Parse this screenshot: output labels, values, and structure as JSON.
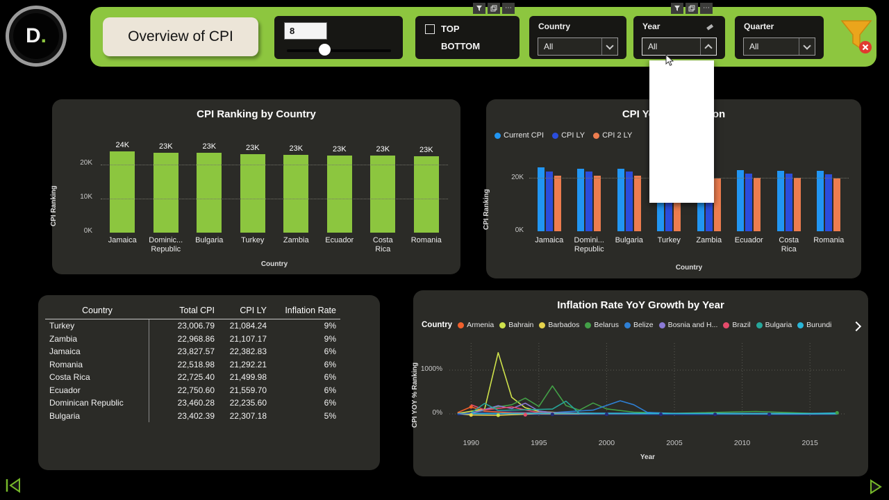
{
  "logo": {
    "text": "D",
    "dot": "."
  },
  "header": {
    "title": "Overview of CPI",
    "slider": {
      "value": "8"
    },
    "topbottom": {
      "top": "TOP",
      "bottom": "BOTTOM"
    },
    "filters": [
      {
        "label": "Country",
        "value": "All"
      },
      {
        "label": "Year",
        "value": "All"
      },
      {
        "label": "Quarter",
        "value": "All"
      }
    ]
  },
  "chart_data": [
    {
      "id": "cpi-ranking-by-country",
      "type": "bar",
      "title": "CPI Ranking by Country",
      "ylabel": "CPI Ranking",
      "xlabel": "Country",
      "bar_color": "#8cc63f",
      "categories": [
        [
          "Jamaica"
        ],
        [
          "Dominic...",
          "Republic"
        ],
        [
          "Bulgaria"
        ],
        [
          "Turkey"
        ],
        [
          "Zambia"
        ],
        [
          "Ecuador"
        ],
        [
          "Costa",
          "Rica"
        ],
        [
          "Romania"
        ]
      ],
      "values": [
        23827.57,
        23460.28,
        23402.39,
        23006.79,
        22968.86,
        22750.6,
        22725.4,
        22518.98
      ],
      "labels": [
        "24K",
        "23K",
        "23K",
        "23K",
        "23K",
        "23K",
        "23K",
        "23K"
      ],
      "ytick_labels": [
        "20K",
        "10K",
        "0K"
      ],
      "ylim": [
        0,
        26000
      ],
      "grid": "dotted horizontal at 10K and 20K"
    },
    {
      "id": "cpi-yoy-comparison",
      "type": "bar",
      "title": "CPI YoY Comparison",
      "ylabel": "CPI Ranking",
      "xlabel": "Country",
      "categories": [
        [
          "Jamaica"
        ],
        [
          "Domini...",
          "Republic"
        ],
        [
          "Bulgaria"
        ],
        [
          "Turkey"
        ],
        [
          "Zambia"
        ],
        [
          "Ecuador"
        ],
        [
          "Costa",
          "Rica"
        ],
        [
          "Romania"
        ]
      ],
      "series": [
        {
          "name": "Current CPI",
          "color": "#2196f3",
          "values": [
            23827.57,
            23460.28,
            23402.39,
            23006.79,
            22968.86,
            22750.6,
            22725.4,
            22518.98
          ]
        },
        {
          "name": "CPI LY",
          "color": "#2a4ddd",
          "values": [
            22382.83,
            22235.6,
            22307.18,
            21084.24,
            21107.17,
            21559.7,
            21499.98,
            21292.21
          ]
        },
        {
          "name": "CPI 2 LY",
          "color": "#ed7d4f",
          "values": [
            20800,
            20680,
            20750,
            19600,
            19650,
            20050,
            20000,
            19800
          ]
        }
      ],
      "ytick_labels": [
        "20K",
        "0K"
      ],
      "ylim": [
        0,
        26000
      ],
      "legend_position": "top-left"
    },
    {
      "id": "cpi-table",
      "type": "table",
      "columns": [
        "Country",
        "Total CPI",
        "CPI LY",
        "Inflation Rate"
      ],
      "rows": [
        [
          "Turkey",
          "23,006.79",
          "21,084.24",
          "9%"
        ],
        [
          "Zambia",
          "22,968.86",
          "21,107.17",
          "9%"
        ],
        [
          "Jamaica",
          "23,827.57",
          "22,382.83",
          "6%"
        ],
        [
          "Romania",
          "22,518.98",
          "21,292.21",
          "6%"
        ],
        [
          "Costa Rica",
          "22,725.40",
          "21,499.98",
          "6%"
        ],
        [
          "Ecuador",
          "22,750.60",
          "21,559.70",
          "6%"
        ],
        [
          "Dominican Republic",
          "23,460.28",
          "22,235.60",
          "6%"
        ],
        [
          "Bulgaria",
          "23,402.39",
          "22,307.18",
          "5%"
        ]
      ]
    },
    {
      "id": "inflation-rate-yoy-growth-by-year",
      "type": "line",
      "title": "Inflation Rate YoY Growth by Year",
      "ylabel": "CPI YOY % Ranking",
      "xlabel": "Year",
      "legend_title": "Country",
      "legend_position": "top",
      "xticks": [
        1990,
        1995,
        2000,
        2005,
        2010,
        2015
      ],
      "yticks": [
        {
          "label": "1000%",
          "value": 1000
        },
        {
          "label": "0%",
          "value": 0
        }
      ],
      "xlim": [
        1988.5,
        2017.5
      ],
      "ylim": [
        -120,
        1600
      ],
      "grid": "dotted",
      "series": [
        {
          "name": "Armenia",
          "color": "#f1602c",
          "points": [
            [
              1989,
              30
            ],
            [
              1990,
              160
            ],
            [
              1991,
              60
            ],
            [
              1993,
              25
            ],
            [
              1996,
              12
            ],
            [
              2000,
              8
            ],
            [
              2005,
              6
            ],
            [
              2010,
              5
            ],
            [
              2015,
              4
            ],
            [
              2017,
              3
            ]
          ]
        },
        {
          "name": "Bahrain",
          "color": "#cfe24b",
          "points": [
            [
              1989,
              10
            ],
            [
              1991,
              110
            ],
            [
              1992,
              1400
            ],
            [
              1993,
              380
            ],
            [
              1994,
              140
            ],
            [
              1995,
              55
            ],
            [
              1997,
              20
            ],
            [
              2000,
              8
            ],
            [
              2005,
              4
            ],
            [
              2010,
              3
            ],
            [
              2015,
              2
            ],
            [
              2017,
              2
            ]
          ]
        },
        {
          "name": "Barbados",
          "color": "#e6d34c",
          "points": [
            [
              1989,
              8
            ],
            [
              1990,
              -25
            ],
            [
              1992,
              -30
            ],
            [
              1995,
              5
            ],
            [
              2000,
              3
            ],
            [
              2005,
              4
            ],
            [
              2010,
              3
            ],
            [
              2015,
              2
            ],
            [
              2017,
              2
            ]
          ]
        },
        {
          "name": "Belarus",
          "color": "#43a047",
          "points": [
            [
              1990,
              12
            ],
            [
              1992,
              160
            ],
            [
              1993,
              210
            ],
            [
              1994,
              360
            ],
            [
              1995,
              170
            ],
            [
              1996,
              640
            ],
            [
              1997,
              190
            ],
            [
              1998,
              85
            ],
            [
              1999,
              250
            ],
            [
              2000,
              115
            ],
            [
              2002,
              40
            ],
            [
              2005,
              12
            ],
            [
              2011,
              55
            ],
            [
              2015,
              12
            ],
            [
              2017,
              8
            ]
          ]
        },
        {
          "name": "Belize",
          "color": "#2e7fd4",
          "points": [
            [
              1989,
              4
            ],
            [
              1995,
              10
            ],
            [
              1999,
              85
            ],
            [
              2001,
              300
            ],
            [
              2002,
              210
            ],
            [
              2003,
              35
            ],
            [
              2005,
              6
            ],
            [
              2010,
              3
            ],
            [
              2017,
              2
            ]
          ]
        },
        {
          "name": "Bosnia and H...",
          "color": "#8b7ad6",
          "points": [
            [
              1990,
              12
            ],
            [
              1992,
              185
            ],
            [
              1993,
              120
            ],
            [
              1994,
              245
            ],
            [
              1995,
              65
            ],
            [
              1996,
              28
            ],
            [
              2000,
              6
            ],
            [
              2005,
              4
            ],
            [
              2010,
              3
            ],
            [
              2017,
              2
            ]
          ]
        },
        {
          "name": "Brazil",
          "color": "#e54b6b",
          "points": [
            [
              1990,
              210
            ],
            [
              1991,
              90
            ],
            [
              1993,
              160
            ],
            [
              1994,
              90
            ],
            [
              1995,
              25
            ],
            [
              2000,
              7
            ],
            [
              2005,
              6
            ],
            [
              2010,
              5
            ],
            [
              2017,
              3
            ]
          ]
        },
        {
          "name": "Bulgaria",
          "color": "#26a69a",
          "points": [
            [
              1990,
              22
            ],
            [
              1991,
              240
            ],
            [
              1992,
              80
            ],
            [
              1996,
              110
            ],
            [
              1997,
              290
            ],
            [
              1998,
              10
            ],
            [
              2000,
              6
            ],
            [
              2005,
              5
            ],
            [
              2010,
              3
            ],
            [
              2017,
              2
            ]
          ]
        },
        {
          "name": "Burundi",
          "color": "#29b6d8",
          "points": [
            [
              1990,
              8
            ],
            [
              1995,
              15
            ],
            [
              2000,
              12
            ],
            [
              2005,
              10
            ],
            [
              2010,
              9
            ],
            [
              2015,
              6
            ],
            [
              2017,
              20
            ]
          ]
        }
      ],
      "extra_series": [
        {
          "color": "#232b7d",
          "points": [
            [
              1989,
              -15
            ],
            [
              1993,
              -10
            ],
            [
              1997,
              -14
            ],
            [
              2001,
              -10
            ],
            [
              2006,
              -14
            ],
            [
              2010,
              -10
            ],
            [
              2014,
              -14
            ],
            [
              2017,
              -10
            ]
          ]
        },
        {
          "color": "#3b2f73",
          "points": [
            [
              1989,
              20
            ],
            [
              1992,
              60
            ],
            [
              1994,
              30
            ],
            [
              1998,
              15
            ],
            [
              2005,
              10
            ],
            [
              2017,
              8
            ]
          ]
        }
      ],
      "markers": [
        {
          "x": 1990,
          "y": 160,
          "color": "#f1602c"
        },
        {
          "x": 1990,
          "y": -25,
          "color": "#e6d34c"
        },
        {
          "x": 1992,
          "y": -30,
          "color": "#cfe24b"
        },
        {
          "x": 1994,
          "y": -20,
          "color": "#e54b6b"
        },
        {
          "x": 1996,
          "y": -10,
          "color": "#232b7d"
        },
        {
          "x": 2000,
          "y": -10,
          "color": "#232b7d"
        },
        {
          "x": 2004,
          "y": -10,
          "color": "#232b7d"
        },
        {
          "x": 2008,
          "y": -10,
          "color": "#232b7d"
        },
        {
          "x": 2012,
          "y": -10,
          "color": "#232b7d"
        },
        {
          "x": 2017,
          "y": 25,
          "color": "#43a047"
        }
      ]
    }
  ]
}
